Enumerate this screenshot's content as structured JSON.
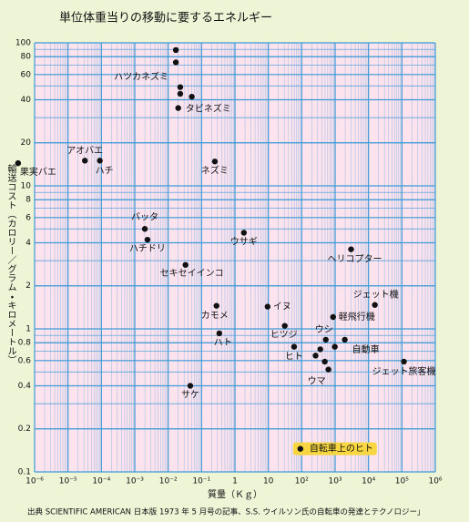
{
  "chart_data": {
    "type": "scatter",
    "title": "単位体重当りの移動に要するエネルギー",
    "x_label": "質量（Ｋｇ）",
    "y_label": "輸送コスト（カロリー／グラム・キロメートル）",
    "source": "出典 SCIENTIFIC AMERICAN 日本版 1973 年 5 月号の記事、S.S. ウイルソン氏の自転車の発達とテクノロジー」",
    "x_log": true,
    "y_log": true,
    "grid": true,
    "minor_grid": true,
    "background_color": "#fde3ee",
    "grid_color": "#3d9ad6",
    "xlim": [
      1e-06,
      1000000.0
    ],
    "ylim": [
      0.1,
      100
    ],
    "xticks": [
      {
        "value": 1e-06,
        "label": "10⁻⁶"
      },
      {
        "value": 1e-05,
        "label": "10⁻⁵"
      },
      {
        "value": 0.0001,
        "label": "10⁻⁴"
      },
      {
        "value": 0.001,
        "label": "10⁻³"
      },
      {
        "value": 0.01,
        "label": "10⁻²"
      },
      {
        "value": 0.1,
        "label": "10⁻¹"
      },
      1,
      10,
      {
        "value": 100,
        "label": "10²"
      },
      {
        "value": 1000,
        "label": "10³"
      },
      {
        "value": 10000,
        "label": "10⁴"
      },
      {
        "value": 100000,
        "label": "10⁵"
      },
      {
        "value": 1000000,
        "label": "10⁶"
      }
    ],
    "yticks": [
      100,
      80,
      60,
      40,
      20,
      10,
      8,
      6,
      4,
      2,
      1,
      0.8,
      0.6,
      0.4,
      0.2,
      0.1
    ],
    "series": [
      {
        "color": "#111111",
        "x": [
          3.2e-07,
          3.2e-05,
          9e-05,
          0.017,
          0.017,
          0.023,
          0.023,
          0.051,
          0.02,
          0.25,
          0.002,
          0.0024,
          1.85,
          3000,
          0.033,
          0.28,
          9.5,
          31,
          0.34,
          525,
          870,
          15500,
          1950,
          59,
          630,
          115000,
          0.046,
          980,
          260,
          360,
          490
        ],
        "values": [
          14.4,
          15,
          15,
          89,
          73,
          49,
          44,
          42,
          35,
          14.8,
          5.0,
          4.2,
          4.7,
          3.6,
          2.8,
          1.45,
          1.43,
          1.05,
          0.93,
          0.84,
          1.21,
          1.47,
          0.84,
          0.75,
          0.52,
          0.59,
          0.4,
          0.75,
          0.65,
          0.72,
          0.59
        ],
        "labels": [
          "果実バエ",
          "アオバエ",
          "ハチ",
          null,
          "ハツカネズミ",
          null,
          null,
          null,
          "タビネズミ",
          "ネズミ",
          "バッタ",
          "ハチドリ",
          "ウサギ",
          "ヘリコプター",
          "セキセイインコ",
          "カモメ",
          "イヌ",
          "ヒツジ",
          "ハト",
          "ウシ",
          "軽飛行機",
          "ジェット機",
          "自動車",
          "ヒト",
          "ウマ",
          "ジェット旅客機",
          "サケ",
          null,
          null,
          null,
          null
        ]
      },
      {
        "color": "#111111",
        "label_background": "#f7d642",
        "x": [
          91
        ],
        "values": [
          0.145
        ],
        "labels": [
          "自転車上のヒト"
        ]
      }
    ]
  }
}
